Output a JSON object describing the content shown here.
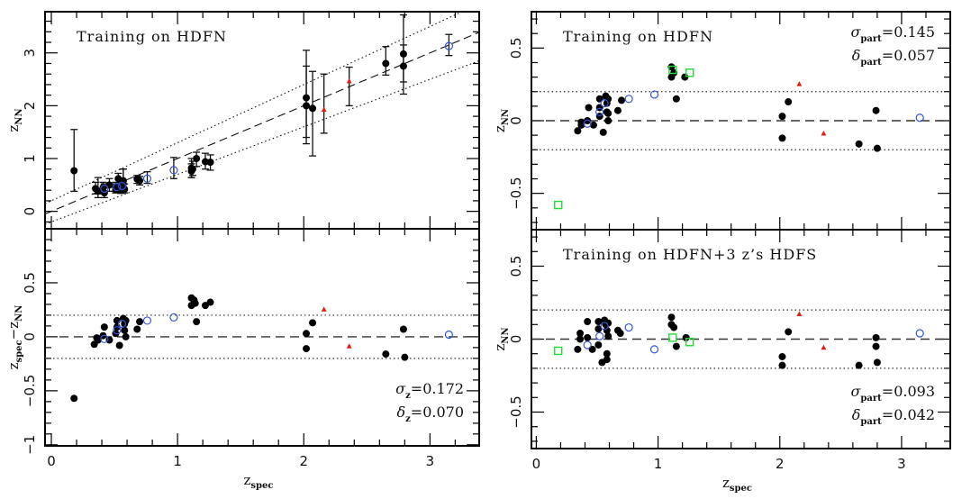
{
  "chart_data": [
    {
      "id": "top-left",
      "type": "scatter",
      "title": "",
      "annotation": "Training on HDFN",
      "xlabel": "",
      "ylabel": {
        "main": "z",
        "sub": "NN"
      },
      "xlim": [
        -0.05,
        3.39
      ],
      "ylim": [
        -0.33,
        3.78
      ],
      "xticks": [
        0,
        1,
        2,
        3
      ],
      "xtick_labels": [
        "",
        "",
        "",
        ""
      ],
      "yticks": [
        0,
        1,
        2,
        3
      ],
      "ytick_labels": [
        "0",
        "1",
        "2",
        "3"
      ],
      "lines": [
        {
          "name": "one-to-one",
          "style": "dashed",
          "slope": 1,
          "intercept": 0
        },
        {
          "name": "upper-bound",
          "style": "dotted",
          "slope": 1.1,
          "intercept": 0.2
        },
        {
          "name": "lower-bound",
          "style": "dotted",
          "slope": 0.9,
          "intercept": -0.2
        }
      ],
      "series": [
        {
          "name": "black-filled-circles",
          "marker": "filled-circle",
          "color": "#000000",
          "points": [
            [
              0.18,
              0.77,
              0.38,
              1.55
            ],
            [
              0.35,
              0.43,
              0.33,
              0.55
            ],
            [
              0.37,
              0.38,
              0.26,
              0.64
            ],
            [
              0.41,
              0.45,
              0.33,
              0.55
            ],
            [
              0.42,
              0.35,
              0.26,
              0.52
            ],
            [
              0.46,
              0.5,
              0.38,
              0.62
            ],
            [
              0.51,
              0.41,
              0.35,
              0.52
            ],
            [
              0.51,
              0.45,
              0.35,
              0.55
            ],
            [
              0.53,
              0.62,
              0.48,
              0.72
            ],
            [
              0.55,
              0.4,
              0.34,
              0.48
            ],
            [
              0.56,
              0.46,
              0.37,
              0.55
            ],
            [
              0.57,
              0.52,
              0.4,
              0.8
            ],
            [
              0.57,
              0.58,
              0.45,
              0.8
            ],
            [
              0.58,
              0.42,
              0.35,
              0.52
            ],
            [
              0.68,
              0.61,
              0.53,
              0.68
            ],
            [
              0.7,
              0.58,
              0.5,
              0.66
            ],
            [
              1.11,
              0.82,
              0.64,
              1.0
            ],
            [
              1.11,
              0.76,
              0.64,
              0.9
            ],
            [
              1.12,
              0.8,
              0.68,
              0.95
            ],
            [
              1.15,
              1.0,
              0.85,
              1.12
            ],
            [
              1.22,
              0.94,
              0.8,
              1.1
            ],
            [
              1.26,
              0.93,
              0.78,
              1.07
            ],
            [
              2.02,
              2.15,
              1.4,
              3.05
            ],
            [
              2.02,
              2.0,
              1.28,
              2.75
            ],
            [
              2.07,
              1.95,
              1.05,
              2.65
            ],
            [
              2.65,
              2.8,
              2.58,
              3.12
            ],
            [
              2.79,
              2.75,
              2.22,
              3.72
            ],
            [
              2.79,
              2.98,
              2.45,
              3.15
            ]
          ]
        },
        {
          "name": "blue-open-circles",
          "marker": "open-circle",
          "color": "#3355dd",
          "points": [
            [
              0.42,
              0.43,
              0.38,
              0.48
            ],
            [
              0.52,
              0.46,
              0.4,
              0.52
            ],
            [
              0.56,
              0.48,
              0.4,
              0.56
            ],
            [
              0.76,
              0.62,
              0.53,
              0.75
            ],
            [
              0.97,
              0.78,
              0.62,
              1.02
            ],
            [
              3.15,
              3.13,
              2.95,
              3.35
            ]
          ]
        },
        {
          "name": "red-triangles",
          "marker": "triangle",
          "color": "#dd2211",
          "points": [
            [
              2.16,
              1.92,
              1.48,
              2.6
            ],
            [
              2.36,
              2.46,
              2.0,
              2.73
            ]
          ]
        }
      ]
    },
    {
      "id": "bottom-left",
      "type": "scatter",
      "title": "",
      "xlabel": {
        "main": "z",
        "sub": "spec"
      },
      "ylabel": {
        "main": "z",
        "sub": "spec",
        "minus": "−",
        "main2": "z",
        "sub2": "NN"
      },
      "xlim": [
        -0.05,
        3.39
      ],
      "ylim": [
        -1.01,
        1.0
      ],
      "xticks": [
        0,
        1,
        2,
        3
      ],
      "xtick_labels": [
        "0",
        "1",
        "2",
        "3"
      ],
      "yticks": [
        -1,
        -0.5,
        0,
        0.5
      ],
      "ytick_labels": [
        "−1",
        "−0.5",
        "0",
        "0.5"
      ],
      "hlines": [
        {
          "y": 0,
          "style": "dashed"
        },
        {
          "y": 0.2,
          "style": "dotted"
        },
        {
          "y": -0.2,
          "style": "dotted"
        }
      ],
      "stats": [
        {
          "symbol": "σ",
          "sub": "z",
          "value": "=0.172"
        },
        {
          "symbol": "δ",
          "sub": "z",
          "value": "=0.070"
        }
      ],
      "series": [
        {
          "name": "black-filled-circles",
          "marker": "filled-circle",
          "color": "#000000",
          "points": [
            [
              0.18,
              -0.57
            ],
            [
              0.34,
              -0.07
            ],
            [
              0.36,
              -0.01
            ],
            [
              0.37,
              -0.03
            ],
            [
              0.41,
              0.01
            ],
            [
              0.42,
              0.09
            ],
            [
              0.46,
              -0.03
            ],
            [
              0.51,
              0.03
            ],
            [
              0.52,
              0.09
            ],
            [
              0.52,
              0.15
            ],
            [
              0.54,
              -0.08
            ],
            [
              0.57,
              0.17
            ],
            [
              0.58,
              0.12
            ],
            [
              0.58,
              0.06
            ],
            [
              0.59,
              0.15
            ],
            [
              0.59,
              0.0
            ],
            [
              0.68,
              0.07
            ],
            [
              0.7,
              0.14
            ],
            [
              1.11,
              0.36
            ],
            [
              1.11,
              0.29
            ],
            [
              1.13,
              0.34
            ],
            [
              1.14,
              0.31
            ],
            [
              1.15,
              0.14
            ],
            [
              1.22,
              0.29
            ],
            [
              1.26,
              0.32
            ],
            [
              2.02,
              0.03
            ],
            [
              2.02,
              -0.11
            ],
            [
              2.07,
              0.13
            ],
            [
              2.65,
              -0.16
            ],
            [
              2.79,
              0.07
            ],
            [
              2.8,
              -0.19
            ]
          ]
        },
        {
          "name": "blue-open-circles",
          "marker": "open-circle",
          "color": "#3355dd",
          "points": [
            [
              0.42,
              -0.02
            ],
            [
              0.52,
              0.06
            ],
            [
              0.56,
              0.12
            ],
            [
              0.76,
              0.15
            ],
            [
              0.97,
              0.18
            ],
            [
              3.15,
              0.02
            ]
          ]
        },
        {
          "name": "red-triangles",
          "marker": "triangle",
          "color": "#dd2211",
          "points": [
            [
              2.16,
              0.25
            ],
            [
              2.36,
              -0.09
            ]
          ]
        }
      ]
    },
    {
      "id": "top-right",
      "type": "scatter",
      "annotation": "Training on HDFN",
      "xlabel": "",
      "ylabel": {
        "main": "z",
        "sub": "NN"
      },
      "xlim": [
        -0.04,
        3.4
      ],
      "ylim": [
        -0.75,
        0.75
      ],
      "xticks": [
        0,
        1,
        2,
        3
      ],
      "xtick_labels": [
        "",
        "",
        "",
        ""
      ],
      "yticks": [
        -0.5,
        0,
        0.5
      ],
      "ytick_labels": [
        "−0.5",
        "0",
        "0.5"
      ],
      "hlines": [
        {
          "y": 0,
          "style": "dashed"
        },
        {
          "y": 0.2,
          "style": "dotted"
        },
        {
          "y": -0.2,
          "style": "dotted"
        }
      ],
      "stats": [
        {
          "symbol": "σ",
          "sub": "part",
          "value": "=0.145"
        },
        {
          "symbol": "δ",
          "sub": "part",
          "value": "=0.057"
        }
      ],
      "series": [
        {
          "name": "black-filled-circles",
          "marker": "filled-circle",
          "color": "#000000",
          "points": [
            [
              0.34,
              -0.07
            ],
            [
              0.37,
              -0.01
            ],
            [
              0.37,
              -0.03
            ],
            [
              0.42,
              0.0
            ],
            [
              0.43,
              0.09
            ],
            [
              0.47,
              -0.03
            ],
            [
              0.52,
              0.03
            ],
            [
              0.52,
              0.09
            ],
            [
              0.52,
              0.15
            ],
            [
              0.55,
              -0.08
            ],
            [
              0.57,
              0.17
            ],
            [
              0.58,
              0.12
            ],
            [
              0.58,
              0.06
            ],
            [
              0.59,
              0.15
            ],
            [
              0.59,
              0.05
            ],
            [
              0.59,
              0.0
            ],
            [
              0.67,
              0.07
            ],
            [
              0.7,
              0.14
            ],
            [
              1.11,
              0.37
            ],
            [
              1.11,
              0.3
            ],
            [
              1.13,
              0.33
            ],
            [
              1.15,
              0.15
            ],
            [
              1.22,
              0.3
            ],
            [
              2.02,
              0.03
            ],
            [
              2.02,
              -0.12
            ],
            [
              2.07,
              0.13
            ],
            [
              2.65,
              -0.16
            ],
            [
              2.79,
              0.07
            ],
            [
              2.8,
              -0.19
            ]
          ]
        },
        {
          "name": "blue-open-circles",
          "marker": "open-circle",
          "color": "#3355dd",
          "points": [
            [
              0.42,
              -0.02
            ],
            [
              0.52,
              0.06
            ],
            [
              0.56,
              0.12
            ],
            [
              0.76,
              0.15
            ],
            [
              0.97,
              0.18
            ],
            [
              3.15,
              0.02
            ]
          ]
        },
        {
          "name": "red-triangles",
          "marker": "triangle",
          "color": "#dd2211",
          "points": [
            [
              2.16,
              0.25
            ],
            [
              2.36,
              -0.09
            ]
          ]
        },
        {
          "name": "green-open-squares",
          "marker": "open-square",
          "color": "#22dd33",
          "points": [
            [
              0.18,
              -0.58
            ],
            [
              1.12,
              0.35
            ],
            [
              1.26,
              0.33
            ]
          ]
        }
      ]
    },
    {
      "id": "bottom-right",
      "type": "scatter",
      "annotation": "Training on HDFN+3 z’s HDFS",
      "xlabel": {
        "main": "z",
        "sub": "spec"
      },
      "ylabel": {
        "main": "z",
        "sub": "NN"
      },
      "xlim": [
        -0.04,
        3.4
      ],
      "ylim": [
        -0.75,
        0.75
      ],
      "xticks": [
        0,
        1,
        2,
        3
      ],
      "xtick_labels": [
        "0",
        "1",
        "2",
        "3"
      ],
      "yticks": [
        -0.5,
        0,
        0.5
      ],
      "ytick_labels": [
        "−0.5",
        "0",
        "0.5"
      ],
      "hlines": [
        {
          "y": 0,
          "style": "dashed"
        },
        {
          "y": 0.2,
          "style": "dotted"
        },
        {
          "y": -0.2,
          "style": "dotted"
        }
      ],
      "stats": [
        {
          "symbol": "σ",
          "sub": "part",
          "value": "=0.093"
        },
        {
          "symbol": "δ",
          "sub": "part",
          "value": "=0.042"
        }
      ],
      "series": [
        {
          "name": "black-filled-circles",
          "marker": "filled-circle",
          "color": "#000000",
          "points": [
            [
              0.34,
              -0.07
            ],
            [
              0.36,
              0.04
            ],
            [
              0.36,
              0.0
            ],
            [
              0.42,
              0.01
            ],
            [
              0.42,
              0.12
            ],
            [
              0.46,
              -0.07
            ],
            [
              0.51,
              -0.04
            ],
            [
              0.51,
              0.07
            ],
            [
              0.51,
              0.12
            ],
            [
              0.54,
              -0.16
            ],
            [
              0.56,
              0.13
            ],
            [
              0.57,
              0.1
            ],
            [
              0.58,
              0.06
            ],
            [
              0.59,
              0.11
            ],
            [
              0.59,
              0.02
            ],
            [
              0.58,
              -0.1
            ],
            [
              0.58,
              -0.14
            ],
            [
              0.67,
              0.06
            ],
            [
              0.69,
              0.04
            ],
            [
              1.11,
              0.15
            ],
            [
              1.11,
              0.1
            ],
            [
              1.13,
              0.08
            ],
            [
              1.15,
              -0.05
            ],
            [
              1.23,
              0.01
            ],
            [
              2.02,
              -0.12
            ],
            [
              2.02,
              -0.18
            ],
            [
              2.07,
              0.05
            ],
            [
              2.65,
              -0.18
            ],
            [
              2.79,
              0.01
            ],
            [
              2.79,
              -0.05
            ],
            [
              2.8,
              -0.16
            ]
          ]
        },
        {
          "name": "blue-open-circles",
          "marker": "open-circle",
          "color": "#3355dd",
          "points": [
            [
              0.42,
              -0.04
            ],
            [
              0.52,
              0.02
            ],
            [
              0.56,
              0.09
            ],
            [
              0.76,
              0.08
            ],
            [
              0.97,
              -0.07
            ],
            [
              3.15,
              0.04
            ]
          ]
        },
        {
          "name": "red-triangles",
          "marker": "triangle",
          "color": "#dd2211",
          "points": [
            [
              2.16,
              0.17
            ],
            [
              2.36,
              -0.06
            ]
          ]
        },
        {
          "name": "green-open-squares",
          "marker": "open-square",
          "color": "#22dd33",
          "points": [
            [
              0.18,
              -0.08
            ],
            [
              1.12,
              0.01
            ],
            [
              1.26,
              -0.02
            ]
          ]
        }
      ]
    }
  ]
}
